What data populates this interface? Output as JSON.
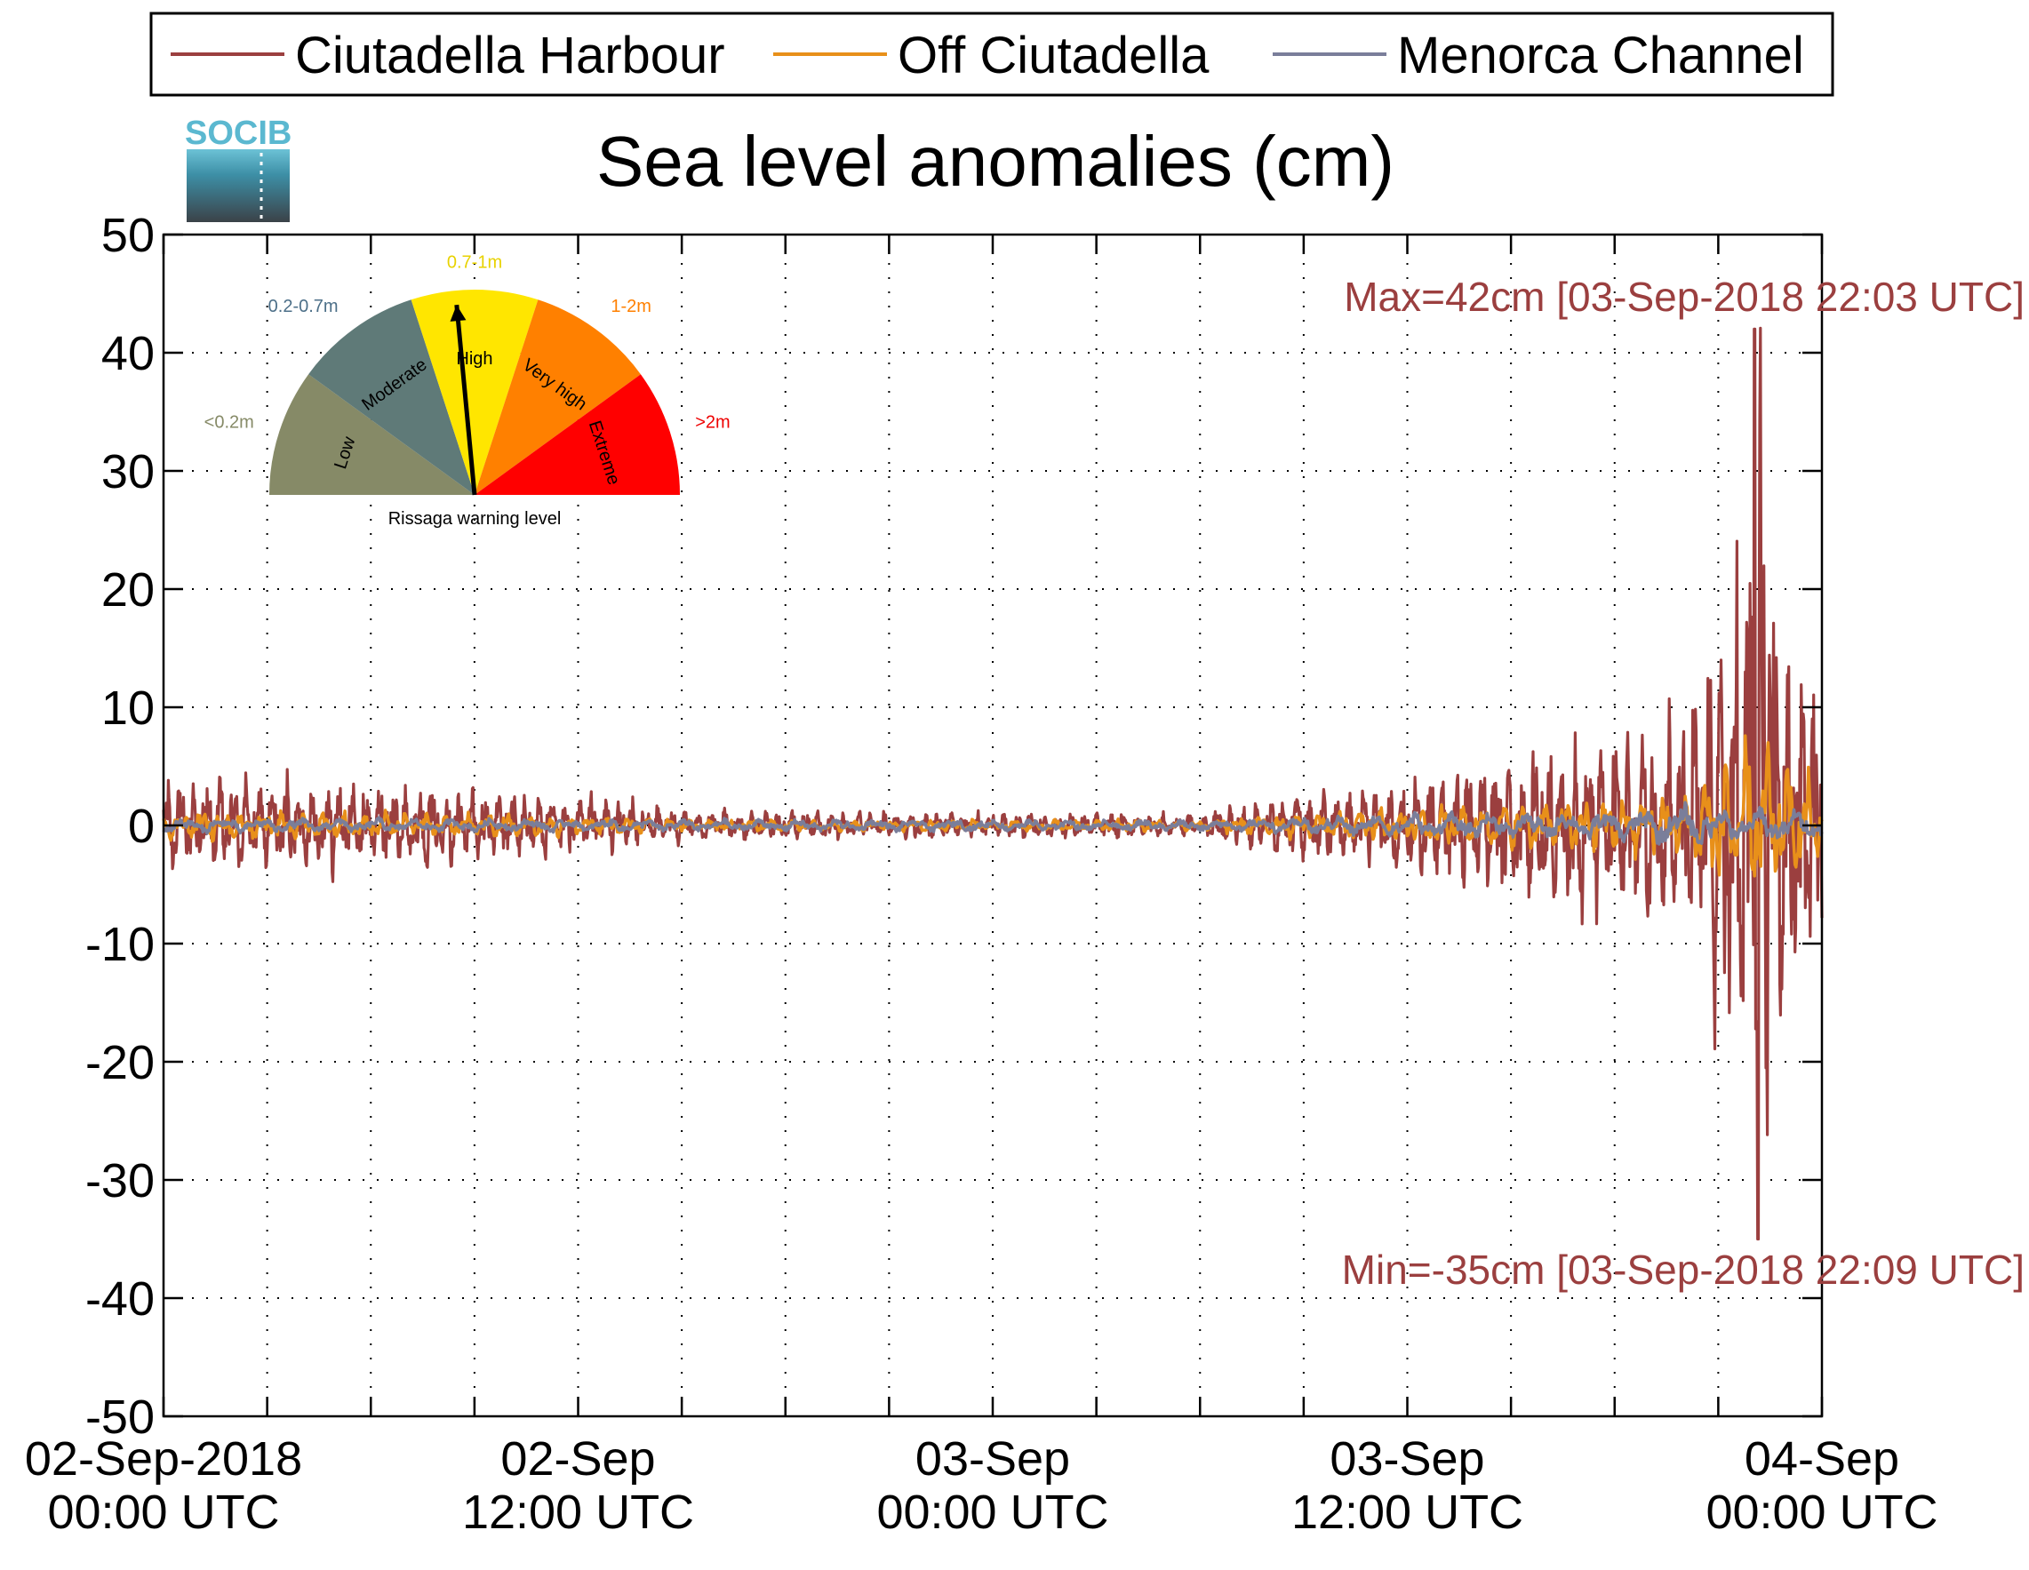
{
  "chart_data": {
    "type": "line",
    "title": "Sea level anomalies (cm)",
    "xlabel": "",
    "ylabel": "",
    "ylim": [
      -50,
      50
    ],
    "yticks": [
      50,
      40,
      30,
      20,
      10,
      0,
      -10,
      -20,
      -30,
      -40,
      -50
    ],
    "xrange_hours": [
      0,
      48
    ],
    "grid": true,
    "legend_position": "top",
    "x_tick_labels": [
      {
        "hours": 0,
        "line1": "02-Sep-2018",
        "line2": "00:00 UTC"
      },
      {
        "hours": 12,
        "line1": "02-Sep",
        "line2": "12:00 UTC"
      },
      {
        "hours": 24,
        "line1": "03-Sep",
        "line2": "00:00 UTC"
      },
      {
        "hours": 36,
        "line1": "03-Sep",
        "line2": "12:00 UTC"
      },
      {
        "hours": 48,
        "line1": "04-Sep",
        "line2": "00:00 UTC"
      }
    ],
    "series": [
      {
        "name": "Ciutadella Harbour",
        "color": "#9b3f3f"
      },
      {
        "name": "Off Ciutadella",
        "color": "#e8901a"
      },
      {
        "name": "Menorca Channel",
        "color": "#7a7e9a"
      }
    ],
    "envelopes": {
      "Ciutadella Harbour": [
        [
          0,
          3.5
        ],
        [
          4,
          3.5
        ],
        [
          7,
          3.0
        ],
        [
          10,
          2.5
        ],
        [
          13,
          2.0
        ],
        [
          15,
          1.2
        ],
        [
          20,
          1.0
        ],
        [
          24,
          0.9
        ],
        [
          28,
          1.0
        ],
        [
          30,
          0.8
        ],
        [
          31,
          1.5
        ],
        [
          33,
          2.5
        ],
        [
          35,
          3.0
        ],
        [
          37,
          4.0
        ],
        [
          39,
          5.5
        ],
        [
          41,
          6.5
        ],
        [
          43,
          7.5
        ],
        [
          44,
          8.0
        ],
        [
          45,
          14
        ],
        [
          45.7,
          26
        ],
        [
          46.2,
          37
        ],
        [
          46.8,
          20
        ],
        [
          47.4,
          14
        ],
        [
          48,
          10
        ]
      ],
      "Off Ciutadella": [
        [
          0,
          1.0
        ],
        [
          10,
          0.8
        ],
        [
          15,
          0.4
        ],
        [
          30,
          0.4
        ],
        [
          33,
          0.9
        ],
        [
          38,
          1.5
        ],
        [
          42,
          2.0
        ],
        [
          44,
          2.5
        ],
        [
          45.5,
          5.5
        ],
        [
          46.3,
          6.0
        ],
        [
          47,
          4.0
        ],
        [
          48,
          3.0
        ]
      ],
      "Menorca Channel": [
        [
          0,
          0.5
        ],
        [
          20,
          0.4
        ],
        [
          30,
          0.4
        ],
        [
          36,
          0.8
        ],
        [
          42,
          1.0
        ],
        [
          44,
          1.5
        ],
        [
          46,
          1.3
        ],
        [
          48,
          1.0
        ]
      ]
    },
    "max_annotation": {
      "text": "Max=42cm [03-Sep-2018 22:03 UTC]",
      "hours": 46.05,
      "value": 42,
      "color": "#9b3f3f"
    },
    "min_annotation": {
      "text": "Min=-35cm [03-Sep-2018 22:09 UTC]",
      "hours": 46.15,
      "value": -35,
      "color": "#9b3f3f"
    }
  },
  "logo": {
    "text": "SOCIB"
  },
  "gauge": {
    "caption": "Rissaga warning level",
    "current_level": "High",
    "segments": [
      {
        "label": "Low",
        "range": "<0.2m",
        "color": "#868a67",
        "range_color": "#868a67"
      },
      {
        "label": "Moderate",
        "range": "0.2-0.7m",
        "color": "#5f7a78",
        "range_color": "#4c6f88"
      },
      {
        "label": "High",
        "range": "0.7-1m",
        "color": "#ffe600",
        "range_color": "#e8d200"
      },
      {
        "label": "Very high",
        "range": "1-2m",
        "color": "#ff8000",
        "range_color": "#ff8000"
      },
      {
        "label": "Extreme",
        "range": ">2m",
        "color": "#ff0000",
        "range_color": "#ee0000"
      }
    ]
  }
}
